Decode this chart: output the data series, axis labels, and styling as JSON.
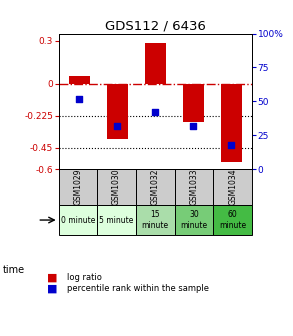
{
  "title": "GDS112 / 6436",
  "samples": [
    "GSM1029",
    "GSM1030",
    "GSM1032",
    "GSM1033",
    "GSM1034"
  ],
  "time_labels": [
    "0 minute",
    "5 minute",
    "15\nminute",
    "30\nminute",
    "60\nminute"
  ],
  "time_colors": [
    "#ddffdd",
    "#ddffdd",
    "#aaddaa",
    "#77cc77",
    "#44bb44"
  ],
  "log_ratio": [
    0.055,
    -0.385,
    0.285,
    -0.27,
    -0.55
  ],
  "percentile": [
    52,
    32,
    42,
    32,
    18
  ],
  "ylim_left": [
    -0.6,
    0.35
  ],
  "ylim_right": [
    0,
    100
  ],
  "yticks_left": [
    0.3,
    0,
    -0.225,
    -0.45,
    -0.6
  ],
  "ytick_labels_left": [
    "0.3",
    "0",
    "-0.225",
    "-0.45",
    "-0.6"
  ],
  "yticks_right": [
    100,
    75,
    50,
    25,
    0
  ],
  "ytick_labels_right": [
    "100%",
    "75",
    "50",
    "25",
    "0"
  ],
  "bar_color": "#cc0000",
  "dot_color": "#0000cc",
  "zero_line_color": "#cc0000",
  "grid_color": "#000000",
  "left_axis_color": "#cc0000",
  "right_axis_color": "#0000cc",
  "bar_width": 0.55,
  "dot_size": 25,
  "sample_bg": "#cccccc"
}
